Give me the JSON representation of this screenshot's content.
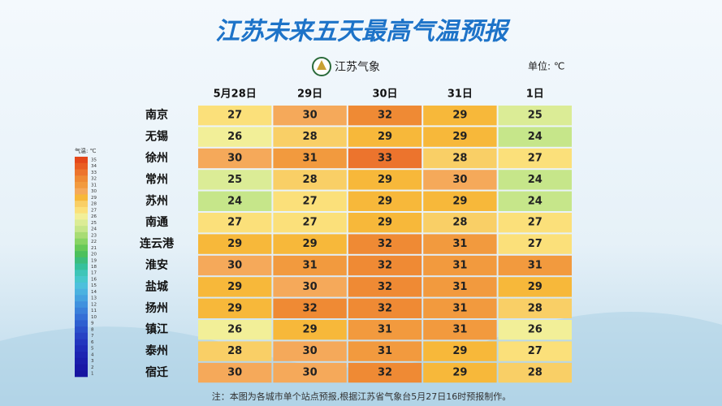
{
  "header": {
    "title": "江苏未来五天最高气温预报",
    "logo": "江苏气象",
    "unit": "单位: ℃"
  },
  "table": {
    "columns": [
      "5月28日",
      "29日",
      "30日",
      "31日",
      "1日"
    ],
    "rows": [
      {
        "city": "南京",
        "values": [
          27,
          30,
          32,
          29,
          25
        ]
      },
      {
        "city": "无锡",
        "values": [
          26,
          28,
          29,
          29,
          24
        ]
      },
      {
        "city": "徐州",
        "values": [
          30,
          31,
          33,
          28,
          27
        ]
      },
      {
        "city": "常州",
        "values": [
          25,
          28,
          29,
          30,
          24
        ]
      },
      {
        "city": "苏州",
        "values": [
          24,
          27,
          29,
          29,
          24
        ]
      },
      {
        "city": "南通",
        "values": [
          27,
          27,
          29,
          28,
          27
        ]
      },
      {
        "city": "连云港",
        "values": [
          29,
          29,
          32,
          31,
          27
        ]
      },
      {
        "city": "淮安",
        "values": [
          30,
          31,
          32,
          31,
          31
        ]
      },
      {
        "city": "盐城",
        "values": [
          29,
          30,
          32,
          31,
          29
        ]
      },
      {
        "city": "扬州",
        "values": [
          29,
          32,
          32,
          31,
          28
        ]
      },
      {
        "city": "镇江",
        "values": [
          26,
          29,
          31,
          31,
          26
        ]
      },
      {
        "city": "泰州",
        "values": [
          28,
          30,
          31,
          29,
          27
        ]
      },
      {
        "city": "宿迁",
        "values": [
          30,
          30,
          32,
          29,
          28
        ]
      }
    ]
  },
  "legend": {
    "title": "气温: ℃",
    "levels": [
      {
        "value": 35,
        "color": "#e4481a"
      },
      {
        "value": 34,
        "color": "#e95e22"
      },
      {
        "value": 33,
        "color": "#ec742d"
      },
      {
        "value": 32,
        "color": "#ef8a34"
      },
      {
        "value": 31,
        "color": "#f29a3e"
      },
      {
        "value": 30,
        "color": "#f5a95a"
      },
      {
        "value": 29,
        "color": "#f7b83a"
      },
      {
        "value": 28,
        "color": "#f9cf66"
      },
      {
        "value": 27,
        "color": "#fbe07a"
      },
      {
        "value": 26,
        "color": "#f2ef98"
      },
      {
        "value": 25,
        "color": "#dbec96"
      },
      {
        "value": 24,
        "color": "#c6e68a"
      },
      {
        "value": 23,
        "color": "#a8dc74"
      },
      {
        "value": 22,
        "color": "#88d464"
      },
      {
        "value": 21,
        "color": "#66c958"
      },
      {
        "value": 20,
        "color": "#4cc05c"
      },
      {
        "value": 19,
        "color": "#3cbd7c"
      },
      {
        "value": 18,
        "color": "#36c19c"
      },
      {
        "value": 17,
        "color": "#3ec5b8"
      },
      {
        "value": 16,
        "color": "#46c7cc"
      },
      {
        "value": 15,
        "color": "#4cc0dc"
      },
      {
        "value": 14,
        "color": "#4ab2e0"
      },
      {
        "value": 13,
        "color": "#45a2e0"
      },
      {
        "value": 12,
        "color": "#3f91de"
      },
      {
        "value": 11,
        "color": "#3a80da"
      },
      {
        "value": 10,
        "color": "#346fd6"
      },
      {
        "value": 9,
        "color": "#2e5fd0"
      },
      {
        "value": 8,
        "color": "#2a50ca"
      },
      {
        "value": 7,
        "color": "#2642c4"
      },
      {
        "value": 6,
        "color": "#2236be"
      },
      {
        "value": 5,
        "color": "#1f2cb8"
      },
      {
        "value": 4,
        "color": "#1c24b2"
      },
      {
        "value": 3,
        "color": "#1a1eac"
      },
      {
        "value": 2,
        "color": "#1818a6"
      },
      {
        "value": 1,
        "color": "#1614a0"
      }
    ]
  },
  "note": "注：本图为各城市单个站点预报,根据江苏省气象台5月27日16时预报制作。"
}
